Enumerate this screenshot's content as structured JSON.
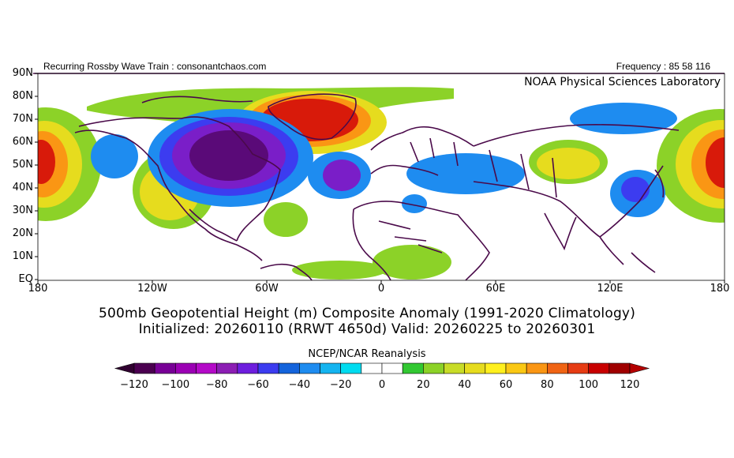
{
  "header": {
    "left_text": "Recurring Rossby Wave Train : consonantchaos.com",
    "right_text": "Frequency : 85 58 116",
    "noaa_label": "NOAA Physical Sciences Laboratory"
  },
  "map": {
    "lat_labels": [
      "90N",
      "80N",
      "70N",
      "60N",
      "50N",
      "40N",
      "30N",
      "20N",
      "10N",
      "EQ"
    ],
    "lon_labels": [
      "180",
      "120W",
      "60W",
      "0",
      "60E",
      "120E",
      "180"
    ],
    "title_line1": "500mb Geopotential Height (m) Composite Anomaly (1991-2020 Climatology)",
    "title_line2": "Initialized: 20260110 (RRWT 4650d) Valid: 20260225 to 20260301",
    "source": "NCEP/NCAR Reanalysis"
  },
  "colorbar": {
    "ticks": [
      "-120",
      "-100",
      "-80",
      "-60",
      "-40",
      "-20",
      "0",
      "20",
      "40",
      "60",
      "80",
      "100",
      "120"
    ],
    "colors": [
      "#4b0050",
      "#780096",
      "#9b00b4",
      "#b40ac8",
      "#8c1eb4",
      "#6e1ede",
      "#3c3cf0",
      "#1464dc",
      "#1e8cf0",
      "#14b4f0",
      "#00dcf0",
      "#ffffff",
      "#ffffff",
      "#32c832",
      "#8cd228",
      "#c8dc28",
      "#e6dc1e",
      "#fff01e",
      "#fac814",
      "#fa9614",
      "#f06414",
      "#e63c14",
      "#c80000",
      "#a00000"
    ],
    "left_arrow_color": "#300030",
    "right_arrow_color": "#b40000"
  },
  "anomaly_palette": {
    "neg_strong": "#5a0a78",
    "neg_mid": "#7a1ec8",
    "neg_weak": "#1e64dc",
    "neg_light": "#1e8cf0",
    "pos_light": "#8cd228",
    "pos_mid": "#e6dc1e",
    "pos_orange": "#fa9614",
    "pos_red": "#d81a0a",
    "coast": "#4a0a4a"
  }
}
